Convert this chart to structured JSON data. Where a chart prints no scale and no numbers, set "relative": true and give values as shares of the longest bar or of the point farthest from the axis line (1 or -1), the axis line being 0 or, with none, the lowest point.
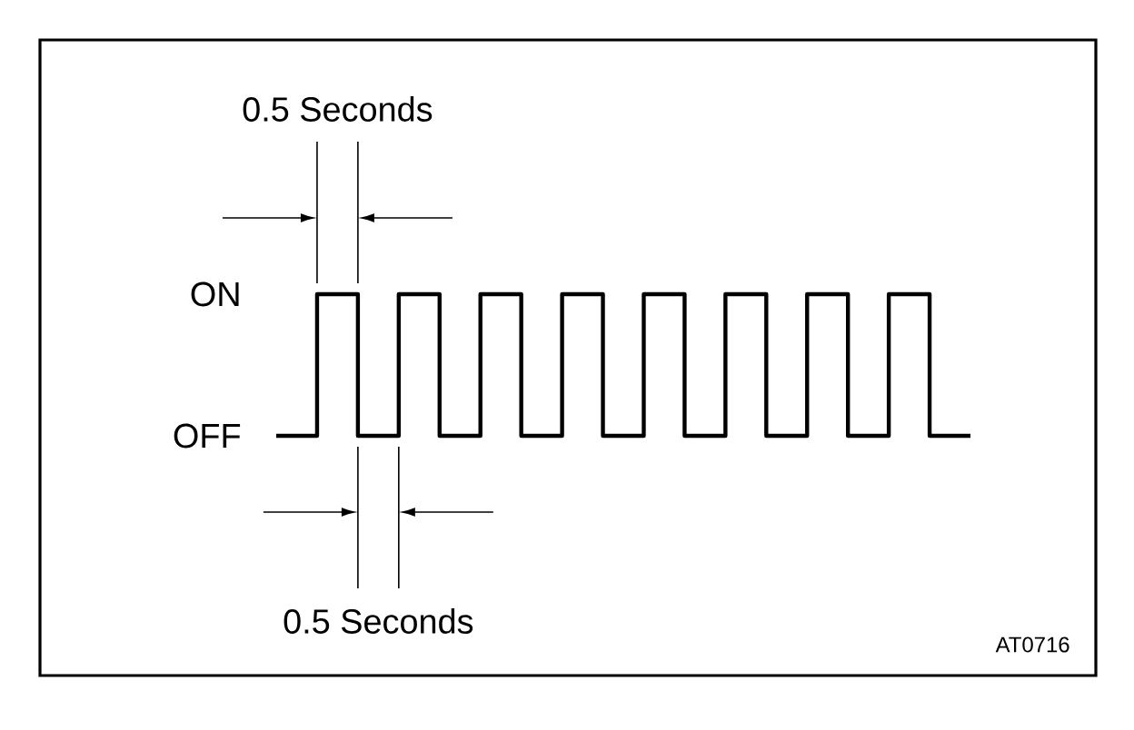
{
  "chart_data": {
    "type": "step",
    "categories": [
      null,
      null,
      null,
      null,
      null,
      null,
      null,
      null,
      null,
      null,
      null,
      null,
      null,
      null,
      null,
      null,
      null,
      null
    ],
    "values": [
      0,
      1,
      0,
      1,
      0,
      1,
      0,
      1,
      0,
      1,
      0,
      1,
      0,
      1,
      0,
      1,
      0,
      0
    ],
    "color": "#000000",
    "relative": true,
    "annotations": [
      "0.5 Seconds",
      "ON",
      "OFF",
      "0.5 Seconds",
      "AT0716"
    ]
  }
}
